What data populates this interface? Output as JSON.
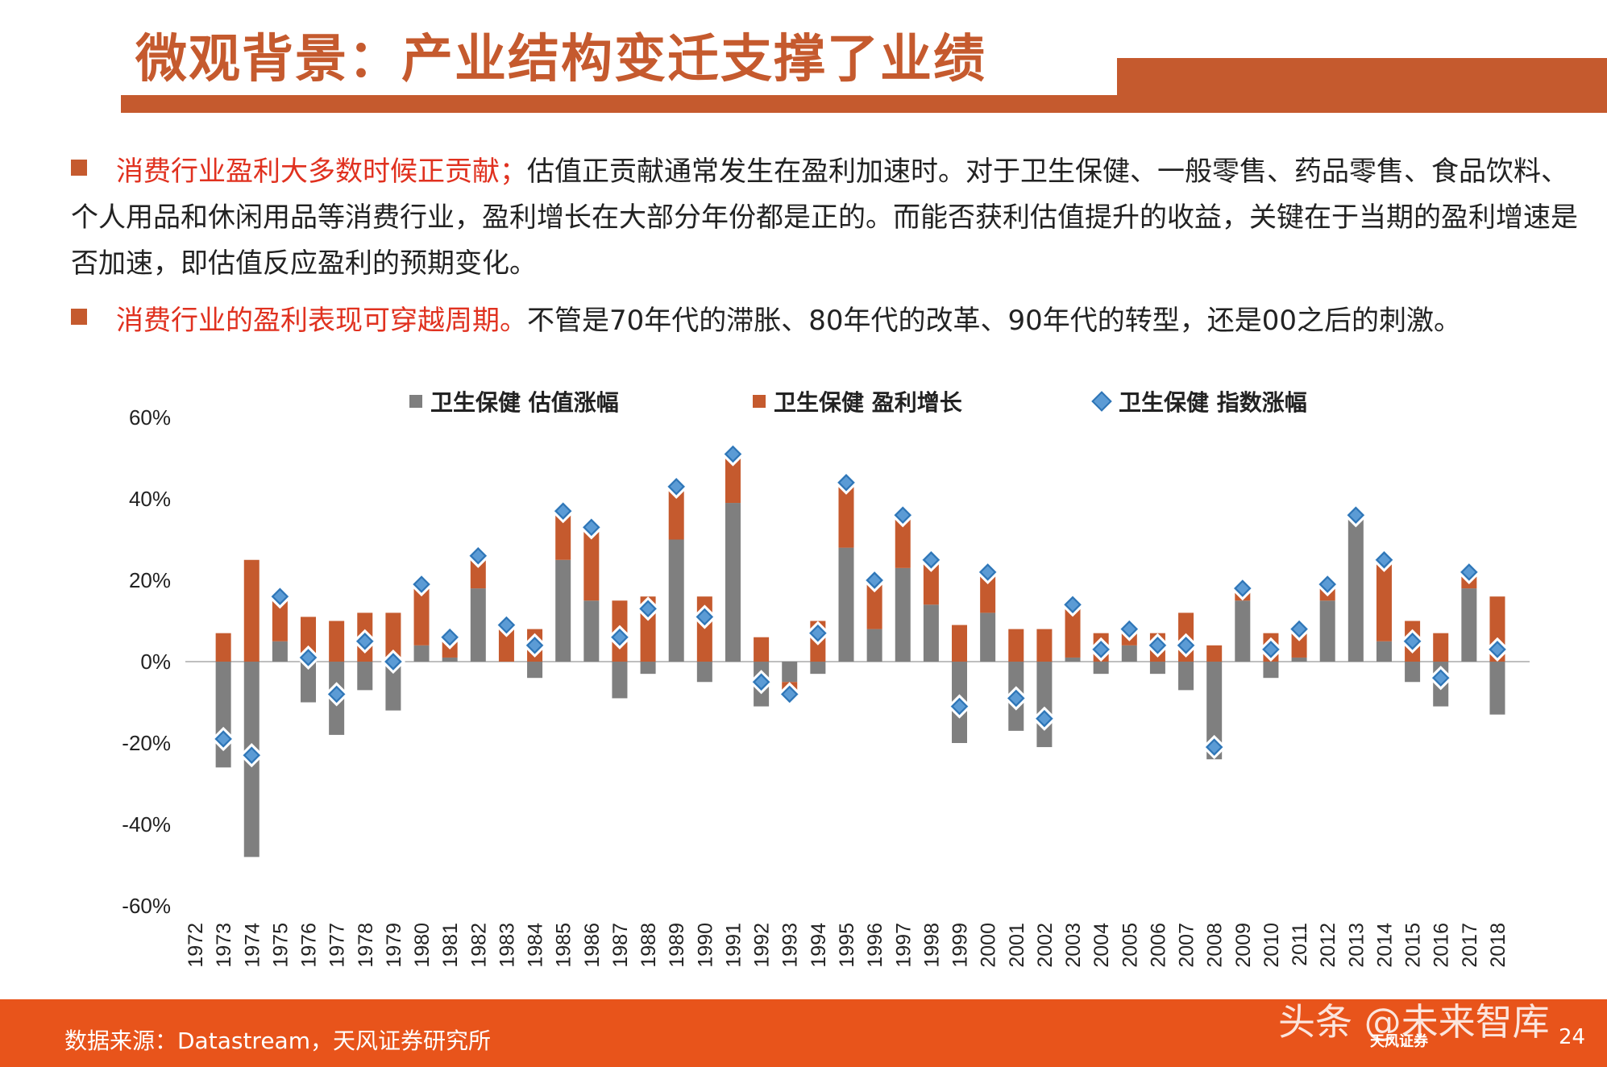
{
  "title": "微观背景：产业结构变迁支撑了业绩",
  "bullets": [
    {
      "highlight": "消费行业盈利大多数时候正贡献；",
      "text": "估值正贡献通常发生在盈利加速时。对于卫生保健、一般零售、药品零售、食品饮料、个人用品和休闲用品等消费行业，盈利增长在大部分年份都是正的。而能否获利估值提升的收益，关键在于当期的盈利增速是否加速，即估值反应盈利的预期变化。"
    },
    {
      "highlight": "消费行业的盈利表现可穿越周期。",
      "text": "不管是70年代的滞胀、80年代的改革、90年代的转型，还是00之后的刺激。"
    }
  ],
  "colors": {
    "valuation": "#7f7f7f",
    "earnings": "#c55a2e",
    "index_fill": "#5b9bd5",
    "index_stroke": "#2e75b6",
    "accent": "#c55a2e",
    "footer": "#e8541b"
  },
  "chart_data": {
    "type": "bar",
    "stacked": true,
    "x": [
      1972,
      1973,
      1974,
      1975,
      1976,
      1977,
      1978,
      1979,
      1980,
      1981,
      1982,
      1983,
      1984,
      1985,
      1986,
      1987,
      1988,
      1989,
      1990,
      1991,
      1992,
      1993,
      1994,
      1995,
      1996,
      1997,
      1998,
      1999,
      2000,
      2001,
      2002,
      2003,
      2004,
      2005,
      2006,
      2007,
      2008,
      2009,
      2010,
      2011,
      2012,
      2013,
      2014,
      2015,
      2016,
      2017,
      2018
    ],
    "x_tick_labels": [
      "1972",
      "1973",
      "1974",
      "1975",
      "1976",
      "1977",
      "1978",
      "1979",
      "1980",
      "1981",
      "1982",
      "1983",
      "1984",
      "1985",
      "1986",
      "1987",
      "1988",
      "1989",
      "1990",
      "1991",
      "1992",
      "1993",
      "1994",
      "1995",
      "1996",
      "1997",
      "1998",
      "1999",
      "2000",
      "2001",
      "2002",
      "2003",
      "2004",
      "2005",
      "2006",
      "2007",
      "2008",
      "2009",
      "2010",
      "2011",
      "2012",
      "2013",
      "2014",
      "2015",
      "2016",
      "2017",
      "2018"
    ],
    "series": [
      {
        "name": "卫生保健 估值涨幅",
        "type": "bar",
        "values": [
          null,
          -26,
          -48,
          5,
          -10,
          -18,
          -7,
          -12,
          4,
          1,
          18,
          0,
          -4,
          25,
          15,
          -9,
          -3,
          30,
          -5,
          39,
          -11,
          -5,
          -3,
          28,
          8,
          23,
          14,
          -20,
          12,
          -17,
          -21,
          1,
          -3,
          4,
          -3,
          -7,
          -24,
          15,
          -4,
          1,
          15,
          35,
          5,
          -5,
          -11,
          18,
          -13
        ]
      },
      {
        "name": "卫生保健 盈利增长",
        "type": "bar",
        "values": [
          null,
          7,
          25,
          10,
          11,
          10,
          12,
          12,
          14,
          5,
          8,
          9,
          8,
          12,
          18,
          15,
          16,
          14,
          16,
          12,
          6,
          -2,
          10,
          16,
          12,
          13,
          11,
          9,
          10,
          8,
          8,
          13,
          7,
          4,
          7,
          12,
          4,
          3,
          7,
          7,
          4,
          1,
          20,
          10,
          7,
          4,
          16
        ]
      },
      {
        "name": "卫生保健 指数涨幅",
        "type": "marker",
        "values": [
          null,
          -19,
          -23,
          16,
          1,
          -8,
          5,
          0,
          19,
          6,
          26,
          9,
          4,
          37,
          33,
          6,
          13,
          43,
          11,
          51,
          -5,
          -8,
          7,
          44,
          20,
          36,
          25,
          -11,
          22,
          -9,
          -14,
          14,
          3,
          8,
          4,
          4,
          -21,
          18,
          3,
          8,
          19,
          36,
          25,
          5,
          -4,
          22,
          3
        ]
      }
    ],
    "ylim": [
      -60,
      60
    ],
    "yticks": [
      -60,
      -40,
      -20,
      0,
      20,
      40,
      60
    ],
    "ytick_labels": [
      "-60%",
      "-40%",
      "-20%",
      "0%",
      "20%",
      "40%",
      "60%"
    ],
    "legend_position": "top",
    "grid": false
  },
  "footer": {
    "source": "数据来源：Datastream，天风证券研究所",
    "page": "24",
    "watermark": "头条 @未来智库",
    "logo": "天风证券"
  }
}
